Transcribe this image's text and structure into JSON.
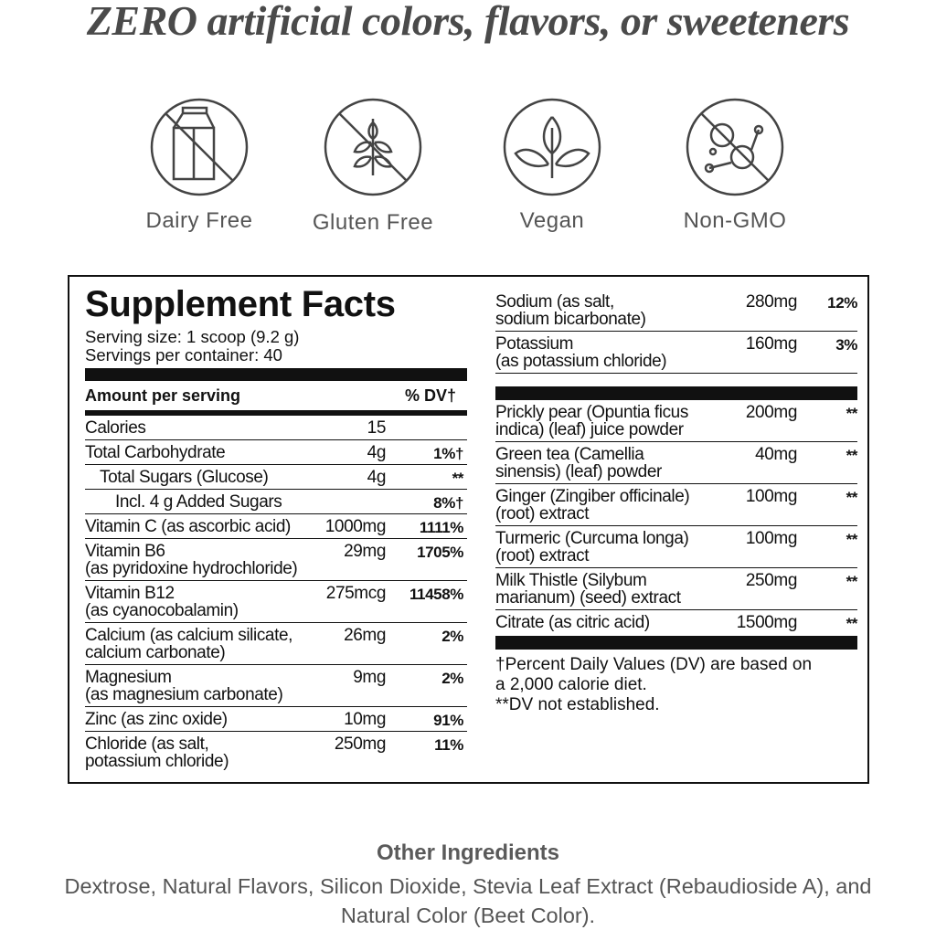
{
  "header": {
    "title": "ZERO artificial colors, flavors, or sweeteners"
  },
  "badges": [
    "Dairy Free",
    "Gluten Free",
    "Vegan",
    "Non-GMO"
  ],
  "facts": {
    "title": "Supplement Facts",
    "serving_size": "Serving size: 1 scoop (9.2 g)",
    "servings": "Servings per container: 40",
    "amount_header": "Amount per serving",
    "dv_header": "% DV†",
    "left_rows": [
      {
        "name": [
          "Calories"
        ],
        "amount": "15"
      },
      {
        "name": [
          "Total Carbohydrate"
        ],
        "amount": "4g",
        "dv": "1%†"
      },
      {
        "name": [
          "Total Sugars (Glucose)"
        ],
        "amount": "4g",
        "dv": "**"
      },
      {
        "name": [
          "Incl. 4 g Added Sugars"
        ],
        "dv": "8%†"
      },
      {
        "name": [
          "Vitamin C (as ascorbic acid)"
        ],
        "amount": "1000mg",
        "dv": "1111%"
      },
      {
        "name": [
          "Vitamin B6",
          "(as pyridoxine hydrochloride)"
        ],
        "amount": "29mg",
        "dv": "1705%"
      },
      {
        "name": [
          "Vitamin B12",
          "(as cyanocobalamin)"
        ],
        "amount": "275mcg",
        "dv": "11458%"
      },
      {
        "name": [
          "Calcium (as calcium silicate,",
          "calcium carbonate)"
        ],
        "amount": "26mg",
        "dv": "2%"
      },
      {
        "name": [
          "Magnesium",
          "(as magnesium carbonate)"
        ],
        "amount": "9mg",
        "dv": "2%"
      },
      {
        "name": [
          "Zinc (as zinc oxide)"
        ],
        "amount": "10mg",
        "dv": "91%"
      },
      {
        "name": [
          "Chloride (as salt,",
          "potassium chloride)"
        ],
        "amount": "250mg",
        "dv": "11%"
      }
    ],
    "right_rows_top": [
      {
        "name": [
          "Sodium (as salt,",
          "sodium bicarbonate)"
        ],
        "amount": "280mg",
        "dv": "12%"
      },
      {
        "name": [
          "Potassium",
          "(as potassium chloride)"
        ],
        "amount": "160mg",
        "dv": "3%"
      }
    ],
    "right_rows_other": [
      {
        "name": [
          "Prickly pear (Opuntia ficus",
          "indica) (leaf) juice powder"
        ],
        "amount": "200mg",
        "dv": "**"
      },
      {
        "name": [
          "Green tea (Camellia",
          "sinensis) (leaf) powder"
        ],
        "amount": "40mg",
        "dv": "**"
      },
      {
        "name": [
          "Ginger (Zingiber officinale)",
          "(root) extract"
        ],
        "amount": "100mg",
        "dv": "**"
      },
      {
        "name": [
          "Turmeric (Curcuma longa)",
          "(root) extract"
        ],
        "amount": "100mg",
        "dv": "**"
      },
      {
        "name": [
          "Milk Thistle (Silybum",
          "marianum) (seed) extract"
        ],
        "amount": "250mg",
        "dv": "**"
      },
      {
        "name": [
          "Citrate (as citric acid)"
        ],
        "amount": "1500mg",
        "dv": "**"
      }
    ],
    "footnotes": [
      "†Percent Daily Values (DV) are based on",
      "a 2,000 calorie diet.",
      "**DV not established."
    ]
  },
  "other_ingredients": {
    "title": "Other Ingredients",
    "text": "Dextrose, Natural Flavors, Silicon Dioxide, Stevia Leaf Extract (Rebaudioside A), and Natural Color (Beet Color)."
  }
}
